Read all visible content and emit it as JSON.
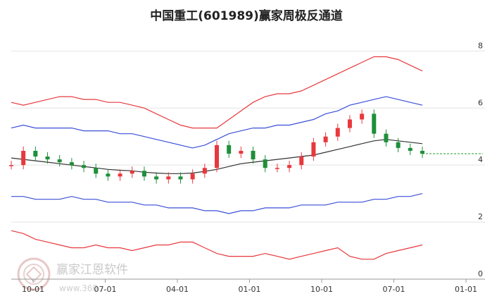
{
  "page_title": "中国重工(601989)赢家周极反通道",
  "watermark": {
    "brand": "赢家江恩软件",
    "url": "www.360..."
  },
  "colors": {
    "outer_band": "#e8383d",
    "inner_band": "#3b4fd8",
    "mid_line": "#333333",
    "candle_up": "#e8383d",
    "candle_down": "#1e8f3a",
    "last_price": "#2a9a2a",
    "grid": "#e3e3e3"
  },
  "chart_data": {
    "type": "candlestick",
    "title": "中国重工(601989)赢家周极反通道",
    "x_ticks": [
      "10-01",
      "07-01",
      "04-01",
      "01-01",
      "10-01",
      "07-01",
      "01-01"
    ],
    "y_ticks": [
      "0",
      "2",
      "4",
      "6",
      "8"
    ],
    "ylim": [
      0,
      8.8
    ],
    "grid": true,
    "last_price": 4.4,
    "outer_upper": [
      6.2,
      6.1,
      6.2,
      6.3,
      6.4,
      6.4,
      6.3,
      6.3,
      6.2,
      6.2,
      6.1,
      6.0,
      5.8,
      5.6,
      5.4,
      5.3,
      5.3,
      5.3,
      5.6,
      5.9,
      6.2,
      6.4,
      6.5,
      6.5,
      6.6,
      6.8,
      7.0,
      7.2,
      7.4,
      7.6,
      7.8,
      7.8,
      7.7,
      7.5,
      7.3
    ],
    "inner_upper": [
      5.3,
      5.4,
      5.3,
      5.3,
      5.3,
      5.3,
      5.2,
      5.2,
      5.2,
      5.1,
      5.1,
      5.0,
      4.9,
      4.8,
      4.7,
      4.6,
      4.7,
      4.9,
      5.1,
      5.2,
      5.3,
      5.3,
      5.4,
      5.4,
      5.5,
      5.6,
      5.8,
      5.9,
      6.1,
      6.2,
      6.3,
      6.4,
      6.3,
      6.2,
      6.1
    ],
    "mid_line": [
      4.25,
      4.2,
      4.15,
      4.1,
      4.05,
      4.0,
      3.95,
      3.9,
      3.85,
      3.82,
      3.8,
      3.75,
      3.72,
      3.7,
      3.7,
      3.72,
      3.78,
      3.85,
      3.95,
      4.05,
      4.1,
      4.15,
      4.2,
      4.25,
      4.3,
      4.35,
      4.45,
      4.55,
      4.65,
      4.75,
      4.85,
      4.9,
      4.85,
      4.8,
      4.75
    ],
    "inner_lower": [
      2.9,
      2.9,
      2.8,
      2.8,
      2.8,
      2.9,
      2.8,
      2.8,
      2.7,
      2.7,
      2.7,
      2.6,
      2.6,
      2.5,
      2.5,
      2.5,
      2.4,
      2.4,
      2.3,
      2.4,
      2.4,
      2.5,
      2.5,
      2.5,
      2.6,
      2.6,
      2.6,
      2.7,
      2.7,
      2.7,
      2.8,
      2.8,
      2.9,
      2.9,
      3.0
    ],
    "outer_lower": [
      1.7,
      1.6,
      1.4,
      1.3,
      1.2,
      1.1,
      1.1,
      1.2,
      1.1,
      1.1,
      1.0,
      1.1,
      1.2,
      1.2,
      1.3,
      1.3,
      1.1,
      0.9,
      0.8,
      0.8,
      0.8,
      0.9,
      0.8,
      0.7,
      0.8,
      0.9,
      1.0,
      1.1,
      0.8,
      0.7,
      0.7,
      0.9,
      1.0,
      1.1,
      1.2
    ],
    "price": [
      4.0,
      4.5,
      4.3,
      4.2,
      4.1,
      4.0,
      3.9,
      3.7,
      3.6,
      3.7,
      3.8,
      3.6,
      3.5,
      3.6,
      3.5,
      3.7,
      3.9,
      4.7,
      4.4,
      4.5,
      4.2,
      3.9,
      3.9,
      4.0,
      4.3,
      4.8,
      5.0,
      5.3,
      5.6,
      5.8,
      5.1,
      4.8,
      4.6,
      4.5,
      4.4
    ]
  }
}
